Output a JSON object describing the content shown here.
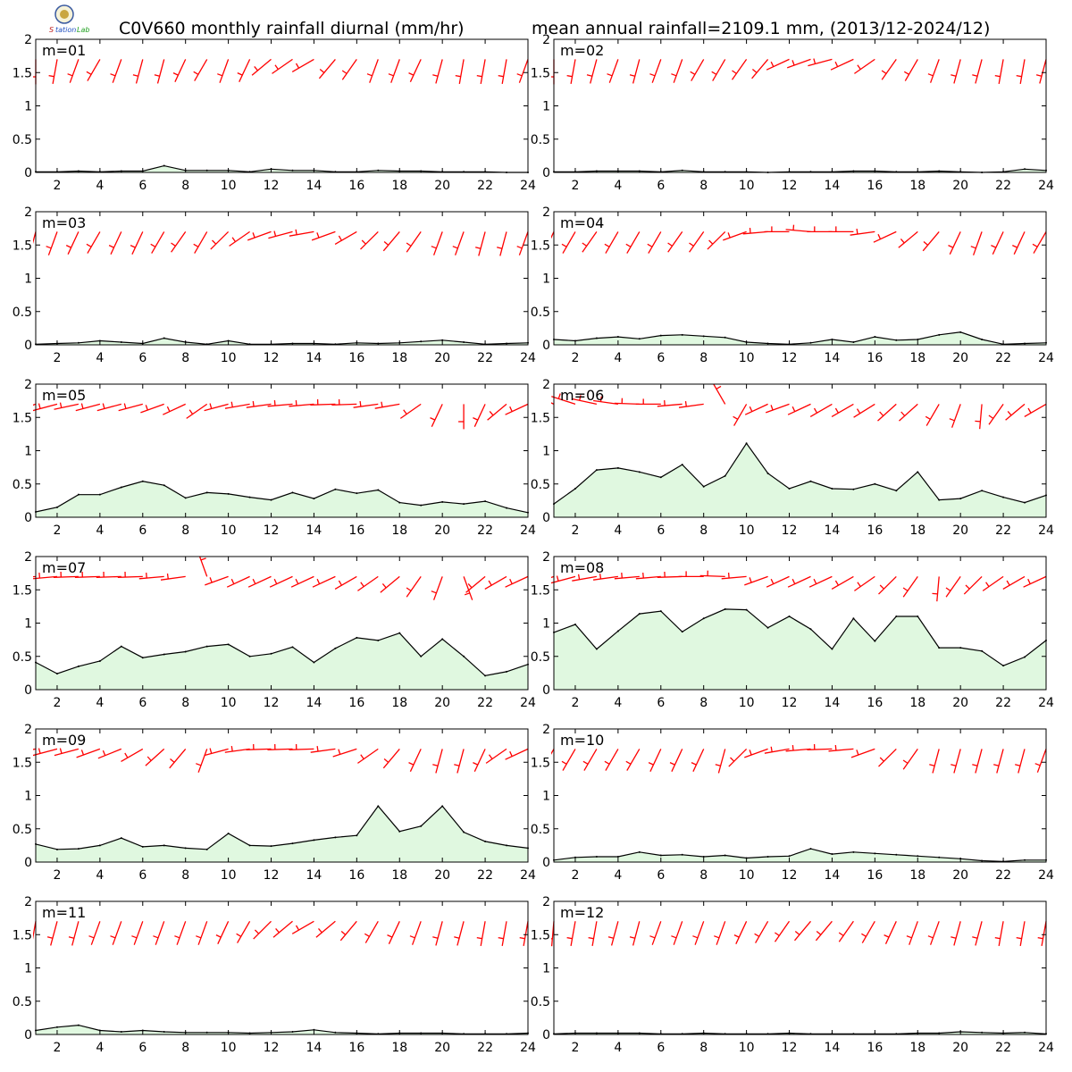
{
  "header": {
    "title_left": "C0V660 monthly rainfall diurnal (mm/hr)",
    "title_right": "mean annual rainfall=2109.1 mm, (2013/12-2024/12)"
  },
  "logo": {
    "text_lines": [
      "S",
      "tation",
      "Lab"
    ]
  },
  "colors": {
    "line": "#000000",
    "fill": "#e0f8e0",
    "wind": "#ff0000",
    "axis": "#000000"
  },
  "axes": {
    "x_ticks": [
      2,
      4,
      6,
      8,
      10,
      12,
      14,
      16,
      18,
      20,
      22,
      24
    ],
    "y_ticks": [
      0,
      0.5,
      1,
      1.5,
      2
    ],
    "y_tick_labels": [
      "0",
      "0.5",
      "1",
      "1.5",
      "2"
    ],
    "xlim": [
      1,
      24
    ],
    "ylim": [
      0,
      2
    ]
  },
  "chart_data": {
    "type": "area",
    "hours": [
      1,
      2,
      3,
      4,
      5,
      6,
      7,
      8,
      9,
      10,
      11,
      12,
      13,
      14,
      15,
      16,
      17,
      18,
      19,
      20,
      21,
      22,
      23,
      24
    ],
    "panels": [
      {
        "label": "m=01",
        "rainfall": [
          0.01,
          0.01,
          0.02,
          0.01,
          0.02,
          0.02,
          0.1,
          0.03,
          0.03,
          0.03,
          0.01,
          0.05,
          0.03,
          0.03,
          0.01,
          0.01,
          0.03,
          0.02,
          0.02,
          0.01,
          0.01,
          0.01,
          0.0,
          0.0
        ],
        "wind_dir": [
          180,
          190,
          200,
          210,
          200,
          195,
          195,
          205,
          210,
          200,
          205,
          230,
          235,
          240,
          220,
          215,
          200,
          200,
          205,
          195,
          190,
          190,
          190,
          200
        ]
      },
      {
        "label": "m=02",
        "rainfall": [
          0.01,
          0.01,
          0.02,
          0.02,
          0.02,
          0.01,
          0.03,
          0.01,
          0.01,
          0.01,
          0.0,
          0.01,
          0.01,
          0.01,
          0.02,
          0.02,
          0.01,
          0.01,
          0.02,
          0.01,
          0.0,
          0.01,
          0.05,
          0.03
        ],
        "wind_dir": [
          180,
          190,
          195,
          200,
          195,
          200,
          200,
          210,
          210,
          215,
          220,
          245,
          250,
          255,
          245,
          235,
          215,
          210,
          200,
          195,
          195,
          190,
          190,
          195
        ]
      },
      {
        "label": "m=03",
        "rainfall": [
          0.01,
          0.02,
          0.03,
          0.06,
          0.04,
          0.02,
          0.1,
          0.04,
          0.01,
          0.06,
          0.01,
          0.01,
          0.02,
          0.02,
          0.01,
          0.03,
          0.02,
          0.03,
          0.05,
          0.07,
          0.04,
          0.01,
          0.02,
          0.03
        ],
        "wind_dir": [
          195,
          200,
          205,
          210,
          205,
          205,
          210,
          215,
          210,
          225,
          235,
          250,
          255,
          260,
          250,
          240,
          225,
          220,
          215,
          200,
          200,
          195,
          195,
          200
        ]
      },
      {
        "label": "m=04",
        "rainfall": [
          0.08,
          0.06,
          0.1,
          0.12,
          0.09,
          0.14,
          0.15,
          0.13,
          0.11,
          0.04,
          0.02,
          0.01,
          0.03,
          0.08,
          0.04,
          0.12,
          0.07,
          0.08,
          0.15,
          0.19,
          0.08,
          0.01,
          0.02,
          0.03
        ],
        "wind_dir": [
          205,
          210,
          215,
          210,
          210,
          210,
          215,
          215,
          225,
          250,
          265,
          270,
          275,
          270,
          270,
          262,
          245,
          230,
          220,
          205,
          200,
          205,
          205,
          210
        ]
      },
      {
        "label": "m=05",
        "rainfall": [
          0.08,
          0.15,
          0.34,
          0.34,
          0.45,
          0.54,
          0.48,
          0.29,
          0.37,
          0.35,
          0.3,
          0.26,
          0.37,
          0.28,
          0.42,
          0.36,
          0.41,
          0.22,
          0.18,
          0.23,
          0.2,
          0.24,
          0.14,
          0.07
        ],
        "wind_dir": [
          250,
          255,
          258,
          255,
          255,
          255,
          250,
          245,
          235,
          255,
          260,
          262,
          265,
          265,
          268,
          268,
          262,
          260,
          235,
          205,
          180,
          205,
          230,
          245
        ]
      },
      {
        "label": "m=06",
        "rainfall": [
          0.2,
          0.43,
          0.71,
          0.74,
          0.68,
          0.6,
          0.79,
          0.46,
          0.62,
          1.11,
          0.66,
          0.43,
          0.54,
          0.43,
          0.42,
          0.5,
          0.4,
          0.68,
          0.26,
          0.28,
          0.4,
          0.3,
          0.22,
          0.33
        ],
        "wind_dir": [
          295,
          288,
          282,
          278,
          272,
          270,
          265,
          262,
          330,
          210,
          245,
          250,
          245,
          240,
          240,
          238,
          228,
          228,
          210,
          200,
          185,
          215,
          230,
          240
        ]
      },
      {
        "label": "m=07",
        "rainfall": [
          0.41,
          0.24,
          0.35,
          0.43,
          0.65,
          0.48,
          0.53,
          0.57,
          0.65,
          0.68,
          0.5,
          0.54,
          0.64,
          0.41,
          0.62,
          0.78,
          0.74,
          0.85,
          0.5,
          0.76,
          0.5,
          0.21,
          0.27,
          0.38
        ],
        "wind_dir": [
          265,
          265,
          268,
          268,
          268,
          268,
          265,
          262,
          340,
          250,
          245,
          245,
          245,
          245,
          245,
          240,
          235,
          230,
          215,
          200,
          160,
          230,
          240,
          245
        ]
      },
      {
        "label": "m=08",
        "rainfall": [
          0.86,
          0.98,
          0.61,
          0.88,
          1.14,
          1.18,
          0.87,
          1.07,
          1.21,
          1.2,
          0.93,
          1.1,
          0.91,
          0.61,
          1.07,
          0.73,
          1.1,
          1.1,
          0.63,
          0.63,
          0.58,
          0.36,
          0.49,
          0.74
        ],
        "wind_dir": [
          250,
          255,
          260,
          262,
          265,
          265,
          268,
          270,
          272,
          265,
          250,
          245,
          245,
          245,
          240,
          235,
          225,
          215,
          185,
          215,
          225,
          235,
          240,
          245
        ]
      },
      {
        "label": "m=09",
        "rainfall": [
          0.27,
          0.19,
          0.2,
          0.25,
          0.36,
          0.23,
          0.25,
          0.21,
          0.19,
          0.43,
          0.25,
          0.24,
          0.28,
          0.33,
          0.37,
          0.4,
          0.84,
          0.46,
          0.54,
          0.84,
          0.45,
          0.31,
          0.25,
          0.21
        ],
        "wind_dir": [
          260,
          255,
          255,
          250,
          248,
          240,
          228,
          220,
          200,
          255,
          262,
          268,
          268,
          268,
          262,
          252,
          235,
          220,
          205,
          195,
          195,
          205,
          235,
          245
        ]
      },
      {
        "label": "m=10",
        "rainfall": [
          0.03,
          0.07,
          0.08,
          0.08,
          0.15,
          0.1,
          0.11,
          0.08,
          0.1,
          0.06,
          0.08,
          0.09,
          0.2,
          0.12,
          0.15,
          0.13,
          0.11,
          0.09,
          0.07,
          0.05,
          0.02,
          0.01,
          0.03,
          0.03
        ],
        "wind_dir": [
          210,
          210,
          210,
          210,
          210,
          205,
          205,
          205,
          195,
          225,
          250,
          260,
          265,
          268,
          265,
          250,
          225,
          215,
          195,
          195,
          195,
          195,
          195,
          200
        ]
      },
      {
        "label": "m=11",
        "rainfall": [
          0.06,
          0.11,
          0.14,
          0.06,
          0.04,
          0.06,
          0.04,
          0.03,
          0.03,
          0.03,
          0.02,
          0.03,
          0.04,
          0.07,
          0.03,
          0.02,
          0.01,
          0.02,
          0.02,
          0.02,
          0.01,
          0.01,
          0.01,
          0.02
        ],
        "wind_dir": [
          190,
          195,
          195,
          200,
          200,
          200,
          200,
          200,
          200,
          205,
          210,
          225,
          230,
          240,
          230,
          220,
          210,
          205,
          200,
          195,
          195,
          190,
          190,
          190
        ]
      },
      {
        "label": "m=12",
        "rainfall": [
          0.01,
          0.02,
          0.02,
          0.02,
          0.02,
          0.01,
          0.01,
          0.02,
          0.01,
          0.01,
          0.01,
          0.02,
          0.01,
          0.01,
          0.01,
          0.01,
          0.01,
          0.02,
          0.02,
          0.04,
          0.03,
          0.02,
          0.03,
          0.01
        ],
        "wind_dir": [
          185,
          190,
          190,
          195,
          195,
          200,
          200,
          200,
          200,
          205,
          210,
          215,
          220,
          220,
          215,
          210,
          205,
          200,
          200,
          195,
          195,
          190,
          190,
          190
        ]
      }
    ]
  }
}
